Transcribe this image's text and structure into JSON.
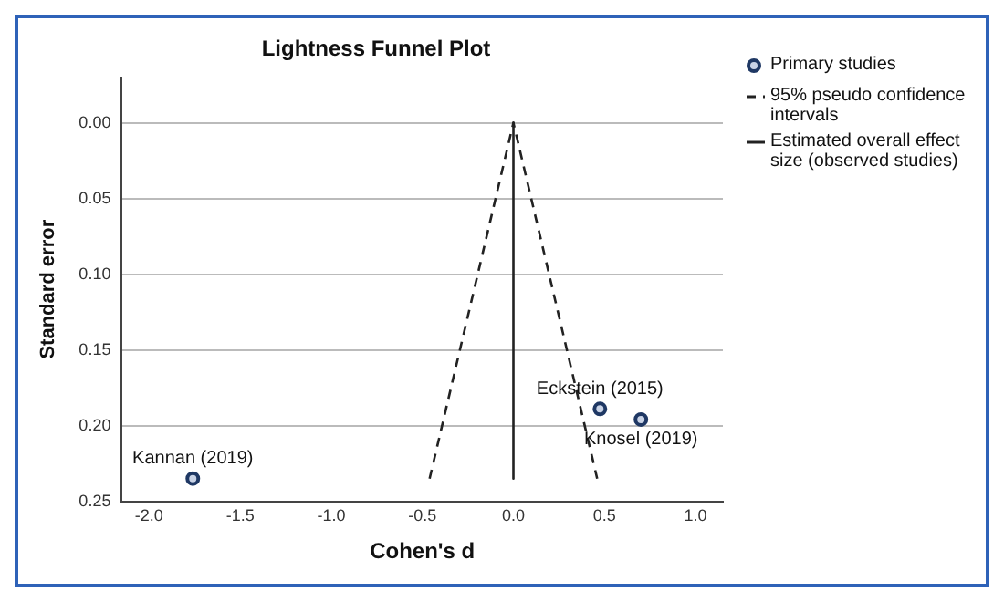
{
  "chart_data": {
    "type": "scatter",
    "title": "Lightness Funnel Plot",
    "xlabel": "Cohen's d",
    "ylabel": "Standard error",
    "xlim": [
      -2.15,
      1.15
    ],
    "ylim": [
      0.25,
      -0.03
    ],
    "xticks": [
      {
        "value": -2,
        "label": "-2.0"
      },
      {
        "value": -1.5,
        "label": "-1.5"
      },
      {
        "value": -1,
        "label": "-1.0"
      },
      {
        "value": -0.5,
        "label": "-0.5"
      },
      {
        "value": 0,
        "label": "0.0"
      },
      {
        "value": 0.5,
        "label": "0.5"
      },
      {
        "value": 1,
        "label": "1.0"
      }
    ],
    "yticks": [
      {
        "value": 0,
        "label": "0.00"
      },
      {
        "value": 0.05,
        "label": "0.05"
      },
      {
        "value": 0.1,
        "label": "0.10"
      },
      {
        "value": 0.15,
        "label": "0.15"
      },
      {
        "value": 0.2,
        "label": "0.20"
      },
      {
        "value": 0.25,
        "label": "0.25"
      }
    ],
    "grid": "y",
    "legend": "top right",
    "series": [
      {
        "name": "Primary studies",
        "type": "scatter",
        "marker": "circle",
        "color": "#1f3864",
        "x": [
          -1.76,
          0.475,
          0.7
        ],
        "values": [
          0.235,
          0.189,
          0.196
        ]
      },
      {
        "name": "95% pseudo confidence intervals",
        "type": "line",
        "line_style": "dashed",
        "color": "#222222",
        "x": [
          -0.46,
          0,
          0.46
        ],
        "values": [
          0.235,
          0,
          0.235
        ]
      },
      {
        "name": "Estimated overall effect size (observed studies)",
        "type": "line",
        "line_style": "solid",
        "color": "#222222",
        "x": [
          0,
          0
        ],
        "values": [
          0,
          0.235
        ]
      }
    ],
    "annotations": [
      {
        "text": "Kannan (2019)",
        "x": -1.76,
        "y": 0.235
      },
      {
        "text": "Eckstein (2015)",
        "x": 0.475,
        "y": 0.189
      },
      {
        "text": "Knosel (2019)",
        "x": 0.7,
        "y": 0.196
      }
    ]
  }
}
